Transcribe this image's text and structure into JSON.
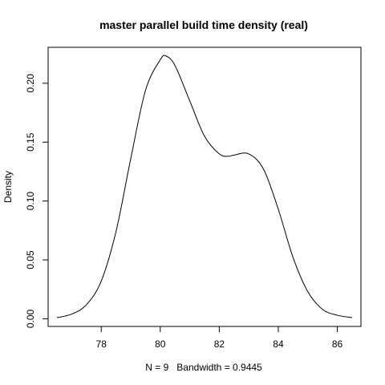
{
  "chart_data": {
    "type": "line",
    "title": "master parallel build time density (real)",
    "xlabel": "N = 9   Bandwidth = 0.9445",
    "ylabel": "Density",
    "xlim": [
      76.2,
      86.8
    ],
    "ylim": [
      -0.0065,
      0.2305
    ],
    "x_ticks": [
      78,
      80,
      82,
      84,
      86
    ],
    "x_tick_labels": [
      "78",
      "80",
      "82",
      "84",
      "86"
    ],
    "y_ticks": [
      0.0,
      0.05,
      0.1,
      0.15,
      0.2
    ],
    "y_tick_labels": [
      "0.00",
      "0.05",
      "0.10",
      "0.15",
      "0.20"
    ],
    "grid": false,
    "legend": "none",
    "line_color": "#000000",
    "series": [
      {
        "x": [
          76.5,
          77.0,
          77.5,
          78.0,
          78.5,
          79.0,
          79.5,
          80.0,
          80.2,
          80.5,
          81.0,
          81.5,
          82.0,
          82.3,
          82.5,
          83.0,
          83.5,
          84.0,
          84.5,
          85.0,
          85.5,
          86.0,
          86.5
        ],
        "y": [
          0.001,
          0.004,
          0.012,
          0.032,
          0.074,
          0.136,
          0.194,
          0.22,
          0.223,
          0.215,
          0.185,
          0.155,
          0.14,
          0.138,
          0.139,
          0.14,
          0.127,
          0.093,
          0.052,
          0.023,
          0.008,
          0.003,
          0.001
        ]
      }
    ]
  }
}
